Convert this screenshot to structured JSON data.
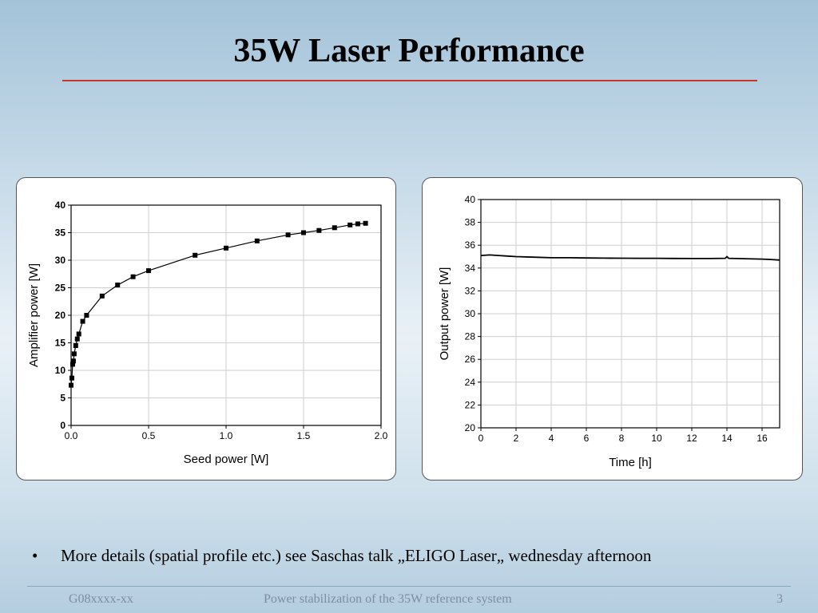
{
  "slide": {
    "title": "35W Laser Performance",
    "bullet_text": "More details (spatial profile etc.) see Saschas talk „ELIGO Laser„ wednesday afternoon",
    "footer_left": "G08xxxx-xx",
    "footer_center": "Power stabilization of the 35W reference system",
    "page_number": "3",
    "colors": {
      "title_rule": "#c0392b",
      "footer_text": "#7d8ea0"
    }
  },
  "chart_data": [
    {
      "type": "scatter",
      "xlabel": "Seed power [W]",
      "ylabel": "Amplifier power [W]",
      "xlim": [
        0,
        2.0
      ],
      "ylim": [
        0,
        40
      ],
      "xticks": [
        "0.0",
        "0.5",
        "1.0",
        "1.5",
        "2.0"
      ],
      "yticks": [
        "0",
        "5",
        "10",
        "15",
        "20",
        "25",
        "30",
        "35",
        "40"
      ],
      "grid": true,
      "marker": "square",
      "connected": true,
      "series": [
        {
          "x": [
            0.0,
            0.005,
            0.01,
            0.015,
            0.02,
            0.03,
            0.04,
            0.05,
            0.075,
            0.1,
            0.2,
            0.3,
            0.4,
            0.5,
            0.8,
            1.0,
            1.2,
            1.4,
            1.5,
            1.6,
            1.7,
            1.8,
            1.85,
            1.9
          ],
          "y": [
            7.3,
            8.6,
            11.1,
            11.7,
            13.0,
            14.5,
            15.7,
            16.6,
            18.9,
            20.0,
            23.5,
            25.5,
            27.0,
            28.1,
            30.9,
            32.2,
            33.5,
            34.6,
            35.0,
            35.4,
            35.9,
            36.4,
            36.6,
            36.7
          ]
        }
      ]
    },
    {
      "type": "line",
      "xlabel": "Time [h]",
      "ylabel": "Output power [W]",
      "xlim": [
        0,
        17
      ],
      "ylim": [
        20,
        40
      ],
      "xticks": [
        "0",
        "2",
        "4",
        "6",
        "8",
        "10",
        "12",
        "14",
        "16"
      ],
      "yticks": [
        "20",
        "22",
        "24",
        "26",
        "28",
        "30",
        "32",
        "34",
        "36",
        "38",
        "40"
      ],
      "grid": true,
      "series": [
        {
          "x": [
            0,
            0.5,
            1,
            1.5,
            2,
            3,
            4,
            5,
            6,
            7,
            8,
            9,
            10,
            11,
            12,
            13,
            13.9,
            14,
            14.1,
            15,
            15.5,
            16,
            16.5,
            17
          ],
          "y": [
            35.1,
            35.15,
            35.1,
            35.05,
            35.0,
            34.95,
            34.9,
            34.9,
            34.88,
            34.87,
            34.86,
            34.85,
            34.85,
            34.84,
            34.83,
            34.83,
            34.85,
            35.0,
            34.85,
            34.82,
            34.8,
            34.78,
            34.75,
            34.7
          ]
        }
      ]
    }
  ]
}
